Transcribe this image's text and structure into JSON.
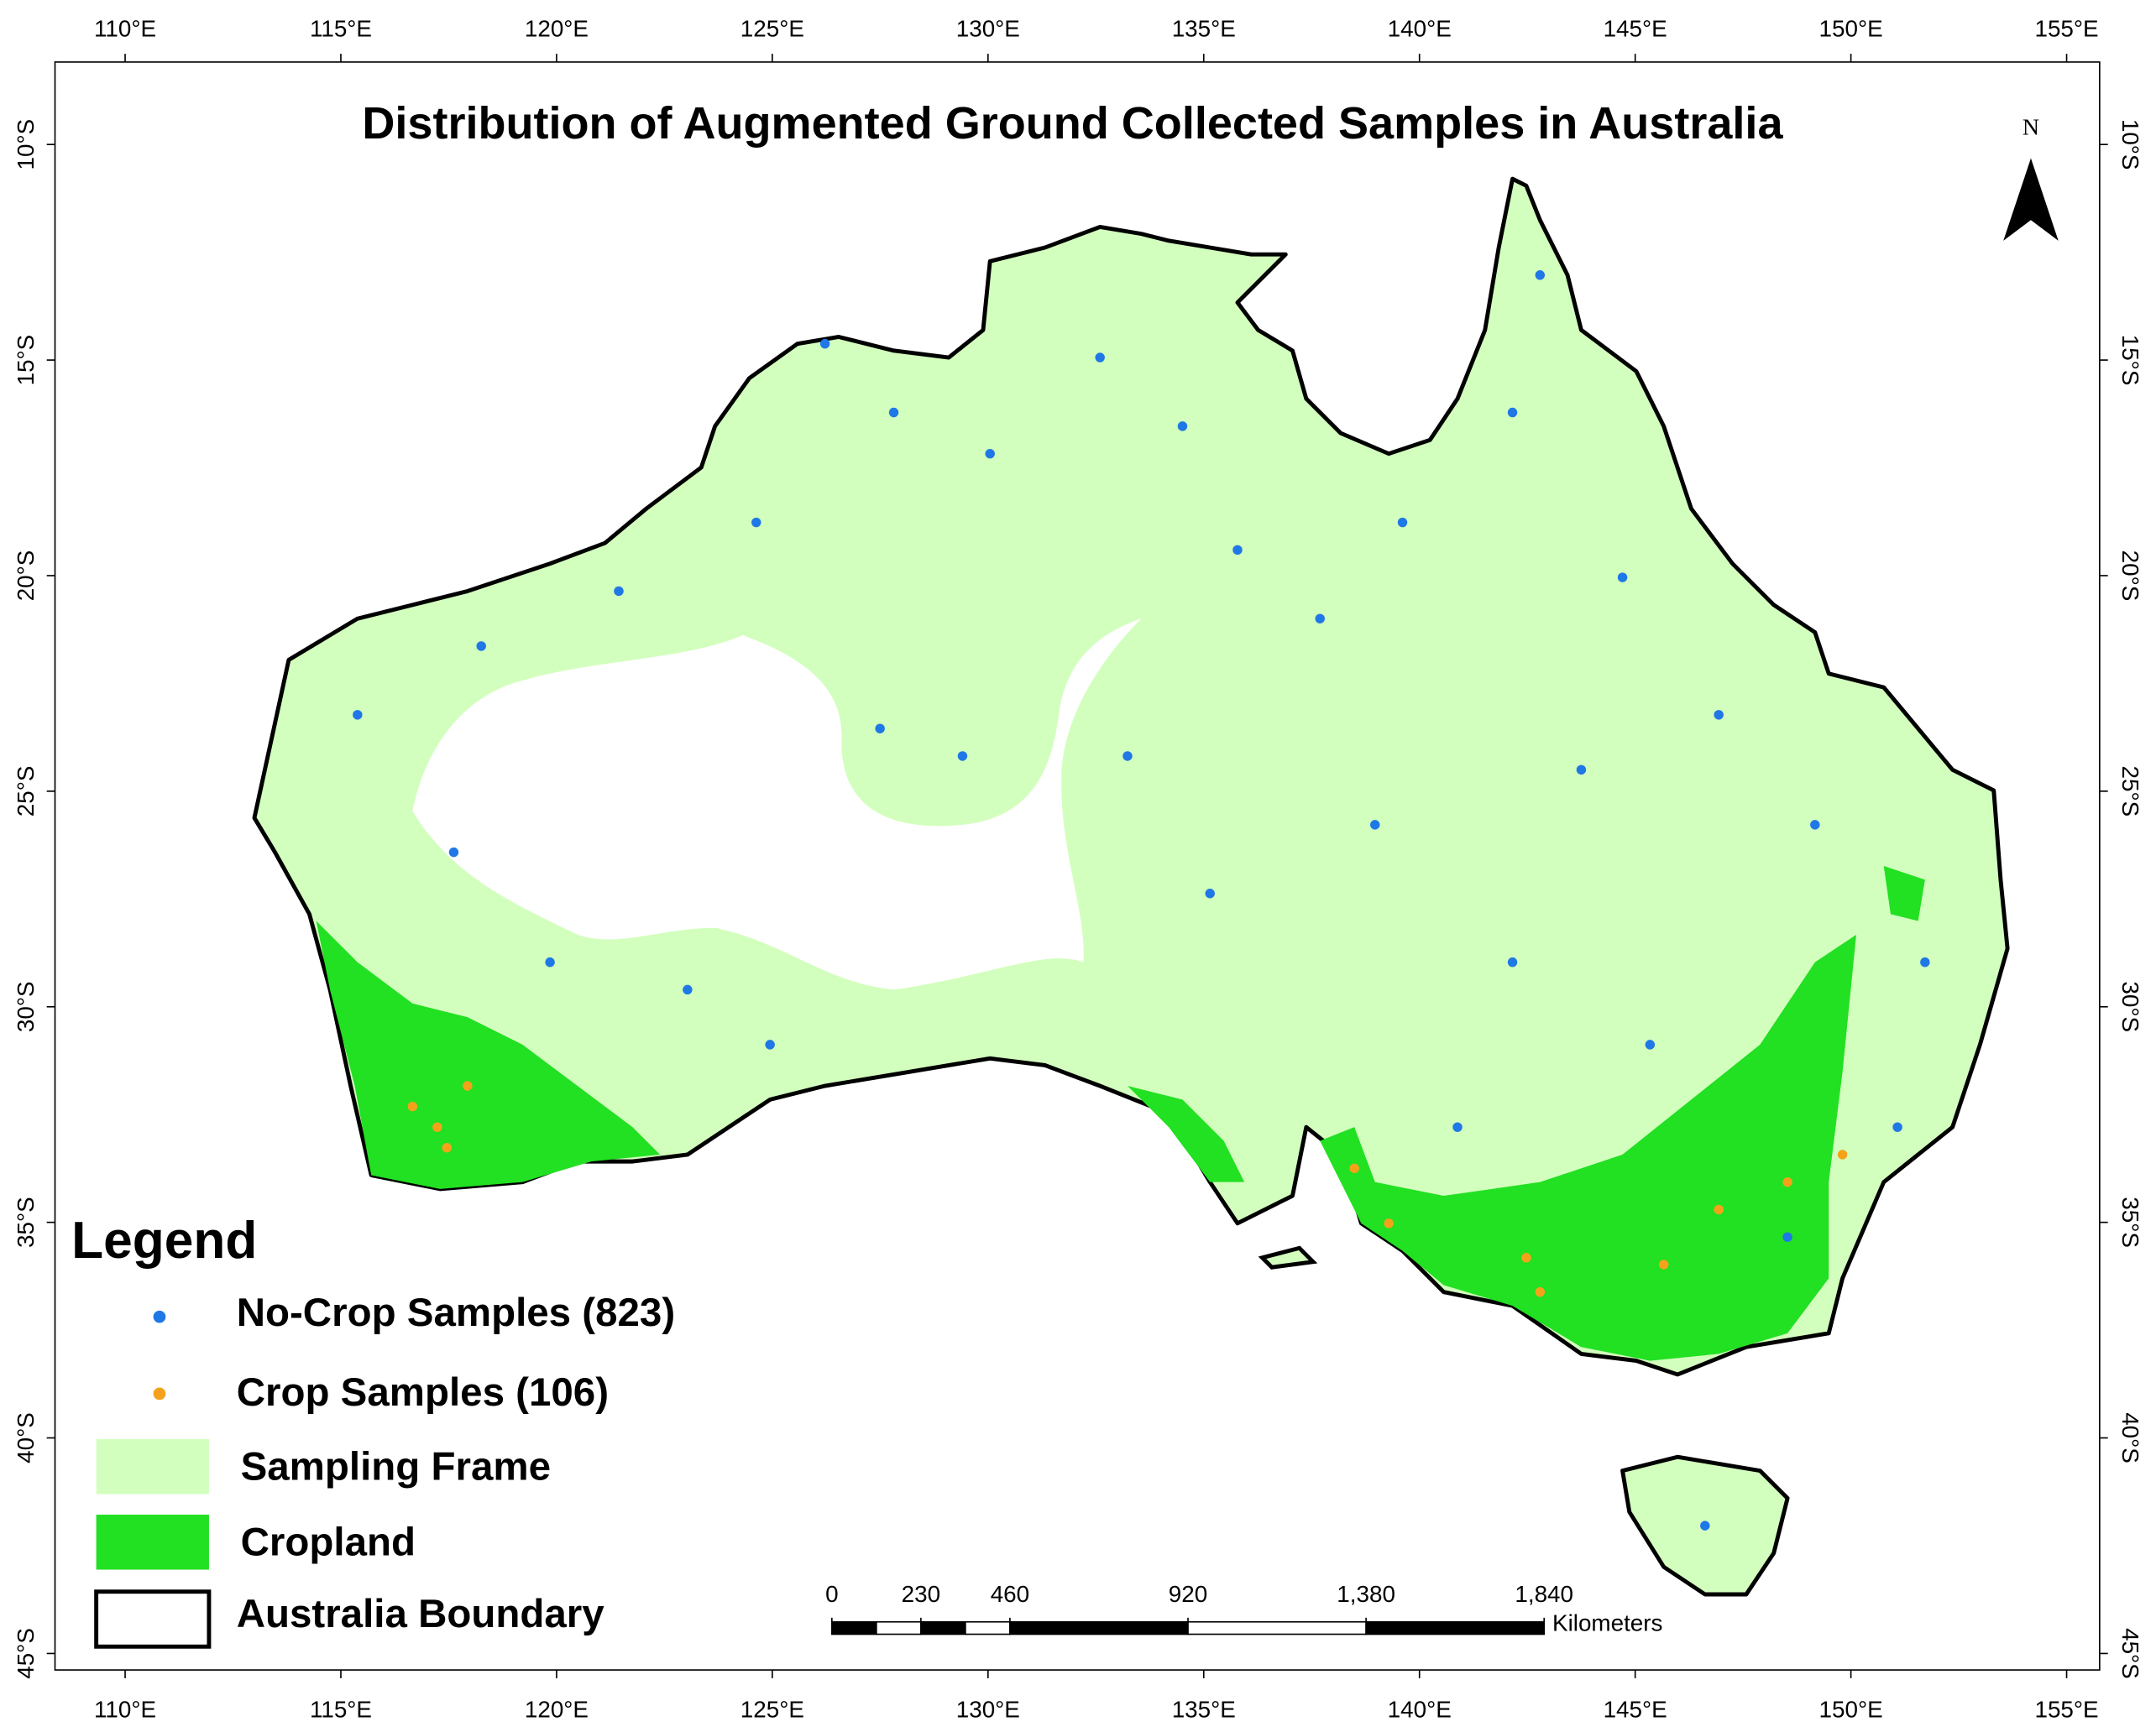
{
  "map": {
    "title": "Distribution of Augmented Ground Collected Samples in Australia",
    "north_label": "N",
    "lon_ticks": [
      {
        "value": 110,
        "label": "110°E"
      },
      {
        "value": 115,
        "label": "115°E"
      },
      {
        "value": 120,
        "label": "120°E"
      },
      {
        "value": 125,
        "label": "125°E"
      },
      {
        "value": 130,
        "label": "130°E"
      },
      {
        "value": 135,
        "label": "135°E"
      },
      {
        "value": 140,
        "label": "140°E"
      },
      {
        "value": 145,
        "label": "145°E"
      },
      {
        "value": 150,
        "label": "150°E"
      },
      {
        "value": 155,
        "label": "155°E"
      }
    ],
    "lat_ticks": [
      {
        "value": -10,
        "label": "10°S"
      },
      {
        "value": -15,
        "label": "15°S"
      },
      {
        "value": -20,
        "label": "20°S"
      },
      {
        "value": -25,
        "label": "25°S"
      },
      {
        "value": -30,
        "label": "30°S"
      },
      {
        "value": -35,
        "label": "35°S"
      },
      {
        "value": -40,
        "label": "40°S"
      },
      {
        "value": -45,
        "label": "45°S"
      }
    ],
    "legend": {
      "title": "Legend",
      "items": [
        "No-Crop Samples (823)",
        "Crop Samples (106)",
        "Sampling Frame",
        "Cropland",
        "Australia Boundary"
      ]
    },
    "scale_bar": {
      "ticks": [
        0,
        230,
        460,
        920,
        {
          "value": 1380,
          "label": "1,380"
        },
        {
          "value": 1840,
          "label": "1,840"
        }
      ],
      "unit": "Kilometers"
    }
  }
}
